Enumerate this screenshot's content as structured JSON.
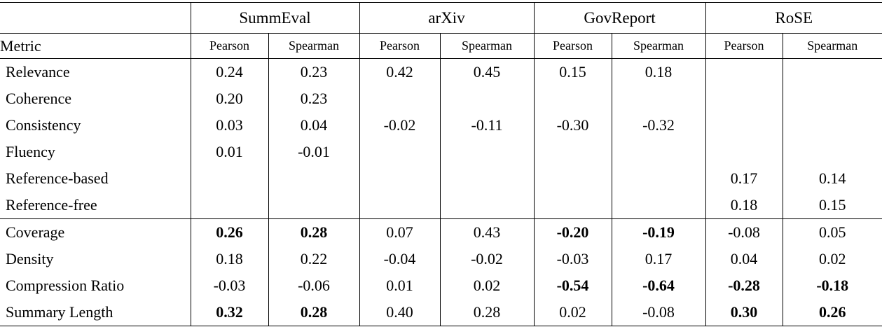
{
  "table": {
    "metric_header": "Metric",
    "groups": [
      {
        "label": "SummEval"
      },
      {
        "label": "arXiv"
      },
      {
        "label": "GovReport"
      },
      {
        "label": "RoSE"
      }
    ],
    "sub_headers": [
      "Pearson",
      "Spearman",
      "Pearson",
      "Spearman",
      "Pearson",
      "Spearman",
      "Pearson",
      "Spearman"
    ],
    "sections": [
      {
        "rows": [
          {
            "metric": "Relevance",
            "values": [
              "0.24",
              "0.23",
              "0.42",
              "0.45",
              "0.15",
              "0.18",
              "",
              ""
            ],
            "bold": [
              false,
              false,
              false,
              false,
              false,
              false,
              false,
              false
            ]
          },
          {
            "metric": "Coherence",
            "values": [
              "0.20",
              "0.23",
              "",
              "",
              "",
              "",
              "",
              ""
            ],
            "bold": [
              false,
              false,
              false,
              false,
              false,
              false,
              false,
              false
            ]
          },
          {
            "metric": "Consistency",
            "values": [
              "0.03",
              "0.04",
              "-0.02",
              "-0.11",
              "-0.30",
              "-0.32",
              "",
              ""
            ],
            "bold": [
              false,
              false,
              false,
              false,
              false,
              false,
              false,
              false
            ]
          },
          {
            "metric": "Fluency",
            "values": [
              "0.01",
              "-0.01",
              "",
              "",
              "",
              "",
              "",
              ""
            ],
            "bold": [
              false,
              false,
              false,
              false,
              false,
              false,
              false,
              false
            ]
          },
          {
            "metric": "Reference-based",
            "values": [
              "",
              "",
              "",
              "",
              "",
              "",
              "0.17",
              "0.14"
            ],
            "bold": [
              false,
              false,
              false,
              false,
              false,
              false,
              false,
              false
            ]
          },
          {
            "metric": "Reference-free",
            "values": [
              "",
              "",
              "",
              "",
              "",
              "",
              "0.18",
              "0.15"
            ],
            "bold": [
              false,
              false,
              false,
              false,
              false,
              false,
              false,
              false
            ]
          }
        ]
      },
      {
        "rows": [
          {
            "metric": "Coverage",
            "values": [
              "0.26",
              "0.28",
              "0.07",
              "0.43",
              "-0.20",
              "-0.19",
              "-0.08",
              "0.05"
            ],
            "bold": [
              true,
              true,
              false,
              false,
              true,
              true,
              false,
              false
            ]
          },
          {
            "metric": "Density",
            "values": [
              "0.18",
              "0.22",
              "-0.04",
              "-0.02",
              "-0.03",
              "0.17",
              "0.04",
              "0.02"
            ],
            "bold": [
              false,
              false,
              false,
              false,
              false,
              false,
              false,
              false
            ]
          },
          {
            "metric": "Compression Ratio",
            "values": [
              "-0.03",
              "-0.06",
              "0.01",
              "0.02",
              "-0.54",
              "-0.64",
              "-0.28",
              "-0.18"
            ],
            "bold": [
              false,
              false,
              false,
              false,
              true,
              true,
              true,
              true
            ]
          },
          {
            "metric": "Summary Length",
            "values": [
              "0.32",
              "0.28",
              "0.40",
              "0.28",
              "0.02",
              "-0.08",
              "0.30",
              "0.26"
            ],
            "bold": [
              true,
              true,
              false,
              false,
              false,
              false,
              true,
              true
            ]
          }
        ]
      }
    ],
    "colors": {
      "text": "#000000",
      "border": "#000000",
      "background": "#ffffff"
    }
  }
}
